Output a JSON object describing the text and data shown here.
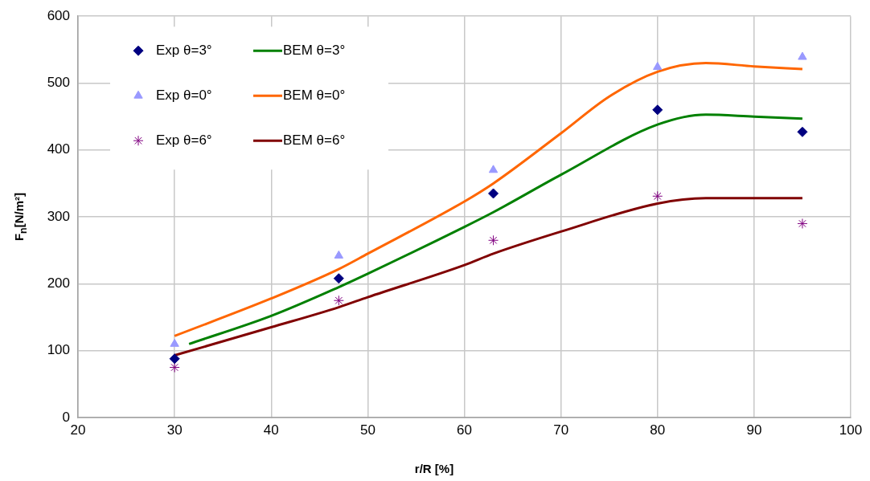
{
  "chart_data": {
    "type": "scatter",
    "xlabel": "r/R [%]",
    "ylabel": "F$_{n}$[N/m²]",
    "xlim": [
      20,
      100
    ],
    "xticks": [
      20,
      30,
      40,
      50,
      60,
      70,
      80,
      90,
      100
    ],
    "ylim": [
      0,
      600
    ],
    "yticks": [
      0,
      100,
      200,
      300,
      400,
      500,
      600
    ],
    "grid": true,
    "legend": "top left",
    "series": [
      {
        "name": "Exp θ=3°",
        "type": "scatter",
        "marker": "diamond",
        "color": "#000080",
        "x": [
          30,
          47,
          63,
          80,
          95
        ],
        "values": [
          88,
          208,
          335,
          460,
          427
        ]
      },
      {
        "name": "BEM θ=3°",
        "type": "line",
        "marker": "none",
        "color": "#008000",
        "x": [
          31.5,
          40,
          47,
          50,
          60,
          63,
          70,
          80,
          85,
          90,
          95
        ],
        "values": [
          110,
          152,
          195,
          215,
          285,
          307,
          363,
          438,
          453,
          450,
          447
        ]
      },
      {
        "name": "Exp θ=0°",
        "type": "scatter",
        "marker": "triangle",
        "color": "#9999ff",
        "x": [
          30,
          47,
          63,
          80,
          95
        ],
        "values": [
          110,
          242,
          370,
          524,
          539
        ]
      },
      {
        "name": "BEM θ=0°",
        "type": "line",
        "marker": "none",
        "color": "#ff6600",
        "x": [
          30,
          40,
          47,
          50,
          60,
          63,
          70,
          75,
          80,
          85,
          90,
          95
        ],
        "values": [
          122,
          178,
          222,
          245,
          323,
          350,
          425,
          480,
          517,
          530,
          525,
          521
        ]
      },
      {
        "name": "Exp θ=6°",
        "type": "scatter",
        "marker": "cross",
        "color": "#800080",
        "x": [
          30,
          47,
          63,
          80,
          95
        ],
        "values": [
          75,
          175,
          265,
          331,
          290
        ]
      },
      {
        "name": "BEM θ=6°",
        "type": "line",
        "marker": "none",
        "color": "#800000",
        "x": [
          30,
          40,
          47,
          50,
          60,
          63,
          70,
          80,
          85,
          90,
          95
        ],
        "values": [
          93,
          135,
          165,
          180,
          228,
          245,
          278,
          320,
          328,
          328,
          328
        ]
      }
    ]
  }
}
